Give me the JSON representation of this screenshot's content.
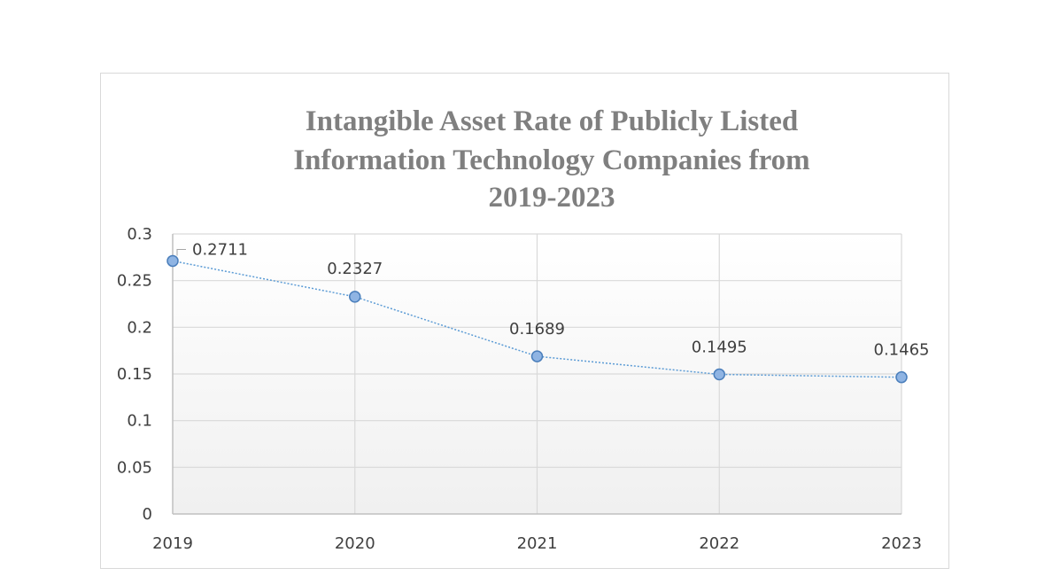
{
  "chart_data": {
    "type": "line",
    "title": "Intangible Asset Rate of Publicly Listed Information Technology Companies from 2019-2023",
    "title_lines": [
      "Intangible Asset Rate of Publicly Listed",
      "Information Technology Companies from",
      "2019-2023"
    ],
    "categories": [
      "2019",
      "2020",
      "2021",
      "2022",
      "2023"
    ],
    "series": [
      {
        "values": [
          0.2711,
          0.2327,
          0.1689,
          0.1495,
          0.1465
        ]
      }
    ],
    "data_labels": [
      "0.2711",
      "0.2327",
      "0.1689",
      "0.1495",
      "0.1465"
    ],
    "ylim": [
      0,
      0.3
    ],
    "y_ticks": [
      0,
      0.05,
      0.1,
      0.15,
      0.2,
      0.25,
      0.3
    ],
    "y_tick_labels": [
      "0",
      "0.05",
      "0.1",
      "0.15",
      "0.2",
      "0.25",
      "0.3"
    ],
    "grid": true,
    "legend": "none",
    "colors": {
      "line": "#5b9bd5",
      "marker_fill": "#8fb4e3",
      "marker_stroke": "#4a7ebb",
      "grid": "#d9d9d9",
      "title": "#7f7f7f"
    }
  }
}
